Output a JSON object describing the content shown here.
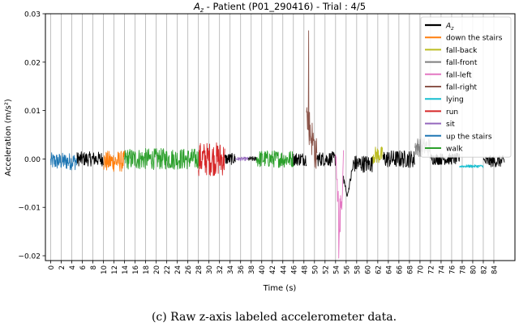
{
  "chart_data": {
    "type": "line",
    "title": "A_z - Patient (P01_290416)  -  Trial : 4/5",
    "title_parts": {
      "var": "A",
      "sub": "z",
      "rest": " - Patient (P01_290416)  -  Trial : 4/5"
    },
    "xlabel": "Time (s)",
    "ylabel": "Acceleration (m/s²)",
    "xlim": [
      -1,
      88
    ],
    "ylim": [
      -0.021,
      0.03
    ],
    "xticks": [
      0,
      2,
      4,
      6,
      8,
      10,
      12,
      14,
      16,
      18,
      20,
      22,
      24,
      26,
      28,
      30,
      32,
      34,
      36,
      38,
      40,
      42,
      44,
      46,
      48,
      50,
      52,
      54,
      56,
      58,
      60,
      62,
      64,
      66,
      68,
      70,
      72,
      74,
      76,
      78,
      80,
      82,
      84
    ],
    "yticks": [
      -0.02,
      -0.01,
      0.0,
      0.01,
      0.02,
      0.03
    ],
    "ytick_labels": [
      "−0.02",
      "−0.01",
      "0.00",
      "0.01",
      "0.02",
      "0.03"
    ],
    "grid": "vertical",
    "legend_position": "top-right",
    "legend": [
      {
        "label": "A_z",
        "var": "A",
        "sub": "z",
        "color": "#000000",
        "bold": true
      },
      {
        "label": "down the stairs",
        "color": "#ff7f0e"
      },
      {
        "label": "fall-back",
        "color": "#bcbd22"
      },
      {
        "label": "fall-front",
        "color": "#7f7f7f"
      },
      {
        "label": "fall-left",
        "color": "#e377c2"
      },
      {
        "label": "fall-right",
        "color": "#8c564b"
      },
      {
        "label": "lying",
        "color": "#17becf"
      },
      {
        "label": "run",
        "color": "#d62728"
      },
      {
        "label": "sit",
        "color": "#9467bd"
      },
      {
        "label": "up the stairs",
        "color": "#1f77b4"
      },
      {
        "label": "walk",
        "color": "#2ca02c"
      }
    ],
    "segments": [
      {
        "label": "up the stairs",
        "color": "#1f77b4",
        "x": [
          0,
          5
        ],
        "amp": 0.0018,
        "base": -0.0005
      },
      {
        "label": "A_z",
        "color": "#000000",
        "x": [
          5,
          10
        ],
        "amp": 0.0015,
        "base": 0.0
      },
      {
        "label": "down the stairs",
        "color": "#ff7f0e",
        "x": [
          10,
          14
        ],
        "amp": 0.0022,
        "base": -0.0005
      },
      {
        "label": "walk",
        "color": "#2ca02c",
        "x": [
          14,
          28
        ],
        "amp": 0.0022,
        "base": 0.0
      },
      {
        "label": "run",
        "color": "#d62728",
        "x": [
          28,
          33
        ],
        "amp": 0.0035,
        "base": 0.0
      },
      {
        "label": "A_z",
        "color": "#000000",
        "x": [
          33,
          35
        ],
        "amp": 0.0012,
        "base": 0.0
      },
      {
        "label": "sit",
        "color": "#9467bd",
        "x": [
          35,
          37.5
        ],
        "amp": 0.0004,
        "base": 0.0
      },
      {
        "label": "A_z",
        "color": "#000000",
        "x": [
          37.5,
          39
        ],
        "amp": 0.0005,
        "base": 0.0
      },
      {
        "label": "walk",
        "color": "#2ca02c",
        "x": [
          39,
          46
        ],
        "amp": 0.0018,
        "base": 0.0
      },
      {
        "label": "A_z",
        "color": "#000000",
        "x": [
          46,
          48.5
        ],
        "amp": 0.0014,
        "base": 0.0
      },
      {
        "label": "fall-right",
        "color": "#8c564b",
        "x": [
          48.5,
          50.5
        ],
        "amp": 0.004,
        "base": 0.006,
        "spike": {
          "x": 48.9,
          "y": 0.0265
        }
      },
      {
        "label": "A_z",
        "color": "#000000",
        "x": [
          50.5,
          54
        ],
        "amp": 0.0015,
        "base": 0.0
      },
      {
        "label": "fall-left",
        "color": "#e377c2",
        "x": [
          54,
          55.5
        ],
        "amp": 0.004,
        "base": -0.008,
        "spike": {
          "x": 54.6,
          "y": -0.0205
        }
      },
      {
        "label": "A_z",
        "color": "#000000",
        "x": [
          55.5,
          61
        ],
        "amp": 0.0018,
        "base": -0.001,
        "dip": {
          "x": 56.2,
          "y": -0.0078
        }
      },
      {
        "label": "fall-back",
        "color": "#bcbd22",
        "x": [
          61,
          63
        ],
        "amp": 0.0018,
        "base": 0.0008
      },
      {
        "label": "A_z",
        "color": "#000000",
        "x": [
          63,
          69
        ],
        "amp": 0.0018,
        "base": 0.0
      },
      {
        "label": "fall-front",
        "color": "#7f7f7f",
        "x": [
          69,
          72
        ],
        "amp": 0.002,
        "base": 0.0025
      },
      {
        "label": "A_z",
        "color": "#000000",
        "x": [
          72,
          77.5
        ],
        "amp": 0.0012,
        "base": 0.0
      },
      {
        "label": "lying",
        "color": "#17becf",
        "x": [
          77.5,
          82
        ],
        "amp": 0.0003,
        "base": -0.0015
      },
      {
        "label": "A_z",
        "color": "#000000",
        "x": [
          82,
          86
        ],
        "amp": 0.0012,
        "base": -0.0005
      }
    ]
  },
  "caption": "(c) Raw z-axis labeled accelerometer data."
}
